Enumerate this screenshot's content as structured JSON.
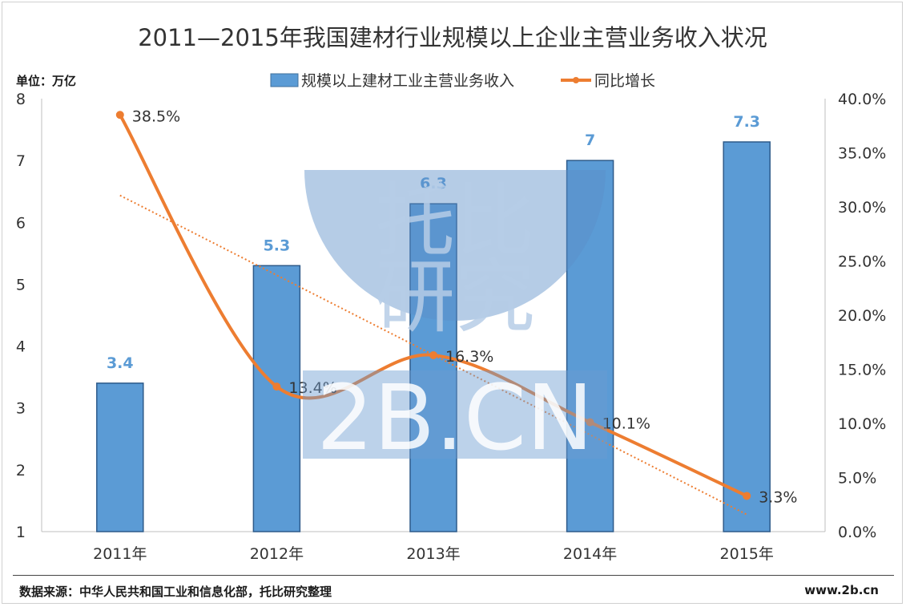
{
  "chart_data": {
    "type": "bar",
    "title": "2011—2015年我国建材行业规模以上企业主营业务收入状况",
    "unit_label": "单位：万亿",
    "categories": [
      "2011年",
      "2012年",
      "2013年",
      "2014年",
      "2015年"
    ],
    "series": [
      {
        "name": "规模以上建材工业主营业务收入",
        "type": "bar",
        "axis": "left",
        "color": "#5b9bd5",
        "values": [
          3.4,
          5.3,
          6.3,
          7,
          7.3
        ],
        "labels": [
          "3.4",
          "5.3",
          "6.3",
          "7",
          "7.3"
        ]
      },
      {
        "name": "同比增长",
        "type": "line",
        "axis": "right",
        "color": "#ed7d31",
        "values": [
          38.5,
          13.4,
          16.3,
          10.1,
          3.3
        ],
        "labels": [
          "38.5%",
          "13.4%",
          "16.3%",
          "10.1%",
          "3.3%"
        ]
      }
    ],
    "trendline": {
      "series": "同比增长",
      "style": "dotted",
      "color": "#ed7d31"
    },
    "y_left": {
      "ylim": [
        1,
        8
      ],
      "ticks": [
        "1",
        "2",
        "3",
        "4",
        "5",
        "6",
        "7",
        "8"
      ]
    },
    "y_right": {
      "ylim": [
        0,
        40
      ],
      "ticks": [
        "0.0%",
        "5.0%",
        "10.0%",
        "15.0%",
        "20.0%",
        "25.0%",
        "30.0%",
        "35.0%",
        "40.0%"
      ]
    },
    "legend_position": "top",
    "grid": false
  },
  "watermark": {
    "line1": "托比",
    "line2": "研究",
    "line3": "2B.CN"
  },
  "footer": {
    "source": "数据来源：中华人民共和国工业和信息化部，托比研究整理",
    "site": "www.2b.cn"
  }
}
